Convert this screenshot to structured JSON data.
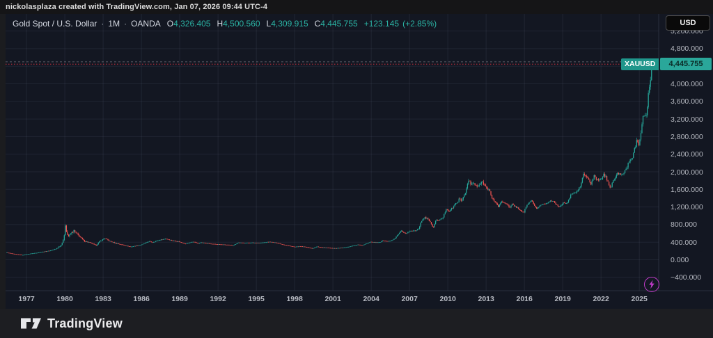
{
  "page": {
    "attribution": "nickolasplaza created with TradingView.com, Jan 07, 2026 09:44 UTC-4"
  },
  "header": {
    "symbol_title": "Gold Spot / U.S. Dollar",
    "separator": "·",
    "timeframe": "1M",
    "exchange": "OANDA",
    "ohlc": {
      "o_label": "O",
      "o": "4,326.405",
      "h_label": "H",
      "h": "4,500.560",
      "l_label": "L",
      "l": "4,309.915",
      "c_label": "C",
      "c": "4,445.755",
      "change": "+123.145",
      "change_pct": "(+2.85%)"
    },
    "currency_button": "USD"
  },
  "price_label": {
    "symbol": "XAUUSD",
    "price": "4,445.755",
    "value": 4445.755
  },
  "footer": {
    "brand": "TradingView"
  },
  "colors": {
    "up": "#26a69a",
    "down": "#ef5350",
    "price_line": "#f23645",
    "ath_line": "#9598a1",
    "badge": "#26a69a",
    "lightning": "#c13bc9",
    "chart_bg": "#131722"
  },
  "chart_data": {
    "type": "candlestick",
    "title": "Gold Spot / U.S. Dollar",
    "symbol": "XAUUSD",
    "timeframe": "1M",
    "exchange": "OANDA",
    "x_axis": {
      "start_year": 1975.4,
      "end_year": 2026.1,
      "tick_years": [
        1977,
        1980,
        1983,
        1986,
        1989,
        1992,
        1995,
        1998,
        2001,
        2004,
        2007,
        2010,
        2013,
        2016,
        2019,
        2022,
        2025
      ]
    },
    "y_axis": {
      "unit": "USD",
      "grid_step": 400,
      "grid_values": [
        -400,
        0,
        400,
        800,
        1200,
        1600,
        2000,
        2400,
        2800,
        3200,
        3600,
        4000,
        4400,
        4800,
        5200
      ],
      "labels": [
        {
          "value": 5200,
          "text": "5,200.000"
        },
        {
          "value": 4800,
          "text": "4,800.000"
        },
        {
          "value": 4000,
          "text": "4,000.000"
        },
        {
          "value": 3600,
          "text": "3,600.000"
        },
        {
          "value": 3200,
          "text": "3,200.000"
        },
        {
          "value": 2800,
          "text": "2,800.000"
        },
        {
          "value": 2400,
          "text": "2,400.000"
        },
        {
          "value": 2000,
          "text": "2,000.000"
        },
        {
          "value": 1600,
          "text": "1,600.000"
        },
        {
          "value": 1200,
          "text": "1,200.000"
        },
        {
          "value": 800,
          "text": "800.000"
        },
        {
          "value": 400,
          "text": "400.000"
        },
        {
          "value": 0,
          "text": "0.000"
        },
        {
          "value": -400,
          "text": "−400.000"
        }
      ]
    },
    "keypoints_year_close": [
      [
        1975.45,
        166
      ],
      [
        1976.0,
        131
      ],
      [
        1976.7,
        108
      ],
      [
        1977.2,
        135
      ],
      [
        1978.0,
        168
      ],
      [
        1978.8,
        205
      ],
      [
        1979.3,
        245
      ],
      [
        1979.7,
        330
      ],
      [
        1979.95,
        512
      ],
      [
        1980.04,
        800
      ],
      [
        1980.13,
        653
      ],
      [
        1980.25,
        520
      ],
      [
        1980.5,
        600
      ],
      [
        1980.7,
        660
      ],
      [
        1981.0,
        570
      ],
      [
        1981.5,
        430
      ],
      [
        1982.0,
        385
      ],
      [
        1982.45,
        325
      ],
      [
        1982.7,
        410
      ],
      [
        1982.9,
        445
      ],
      [
        1983.1,
        490
      ],
      [
        1983.5,
        425
      ],
      [
        1984.0,
        375
      ],
      [
        1984.6,
        335
      ],
      [
        1985.15,
        295
      ],
      [
        1985.7,
        325
      ],
      [
        1986.0,
        340
      ],
      [
        1986.6,
        420
      ],
      [
        1986.85,
        395
      ],
      [
        1987.3,
        440
      ],
      [
        1987.9,
        480
      ],
      [
        1988.3,
        445
      ],
      [
        1988.9,
        415
      ],
      [
        1989.45,
        362
      ],
      [
        1989.9,
        400
      ],
      [
        1990.1,
        412
      ],
      [
        1990.45,
        365
      ],
      [
        1990.6,
        395
      ],
      [
        1991.0,
        380
      ],
      [
        1991.5,
        360
      ],
      [
        1992.0,
        352
      ],
      [
        1992.7,
        340
      ],
      [
        1993.2,
        330
      ],
      [
        1993.6,
        390
      ],
      [
        1994.0,
        382
      ],
      [
        1994.7,
        388
      ],
      [
        1995.3,
        383
      ],
      [
        1996.05,
        408
      ],
      [
        1996.6,
        385
      ],
      [
        1997.0,
        352
      ],
      [
        1997.5,
        322
      ],
      [
        1998.0,
        292
      ],
      [
        1998.4,
        305
      ],
      [
        1998.9,
        292
      ],
      [
        1999.4,
        256
      ],
      [
        1999.75,
        300
      ],
      [
        2000.1,
        283
      ],
      [
        2000.5,
        276
      ],
      [
        2001.15,
        262
      ],
      [
        2001.7,
        272
      ],
      [
        2002.0,
        282
      ],
      [
        2002.45,
        312
      ],
      [
        2002.95,
        342
      ],
      [
        2003.3,
        330
      ],
      [
        2003.6,
        362
      ],
      [
        2003.95,
        412
      ],
      [
        2004.3,
        392
      ],
      [
        2004.7,
        402
      ],
      [
        2004.9,
        438
      ],
      [
        2005.1,
        425
      ],
      [
        2005.45,
        422
      ],
      [
        2005.85,
        476
      ],
      [
        2006.0,
        540
      ],
      [
        2006.35,
        660
      ],
      [
        2006.5,
        613
      ],
      [
        2006.75,
        600
      ],
      [
        2007.0,
        650
      ],
      [
        2007.4,
        662
      ],
      [
        2007.7,
        700
      ],
      [
        2008.0,
        920
      ],
      [
        2008.2,
        968
      ],
      [
        2008.55,
        890
      ],
      [
        2008.85,
        725
      ],
      [
        2009.1,
        920
      ],
      [
        2009.3,
        890
      ],
      [
        2009.6,
        950
      ],
      [
        2009.9,
        1170
      ],
      [
        2010.1,
        1100
      ],
      [
        2010.45,
        1210
      ],
      [
        2010.9,
        1380
      ],
      [
        2011.05,
        1330
      ],
      [
        2011.35,
        1510
      ],
      [
        2011.65,
        1825
      ],
      [
        2011.8,
        1700
      ],
      [
        2011.95,
        1745
      ],
      [
        2012.3,
        1655
      ],
      [
        2012.7,
        1770
      ],
      [
        2012.95,
        1670
      ],
      [
        2013.25,
        1590
      ],
      [
        2013.45,
        1390
      ],
      [
        2013.7,
        1325
      ],
      [
        2013.95,
        1200
      ],
      [
        2014.2,
        1325
      ],
      [
        2014.55,
        1290
      ],
      [
        2014.85,
        1175
      ],
      [
        2015.05,
        1260
      ],
      [
        2015.5,
        1170
      ],
      [
        2015.95,
        1062
      ],
      [
        2016.15,
        1230
      ],
      [
        2016.55,
        1355
      ],
      [
        2016.95,
        1150
      ],
      [
        2017.3,
        1255
      ],
      [
        2017.65,
        1275
      ],
      [
        2018.0,
        1340
      ],
      [
        2018.3,
        1320
      ],
      [
        2018.75,
        1190
      ],
      [
        2019.0,
        1290
      ],
      [
        2019.35,
        1290
      ],
      [
        2019.7,
        1500
      ],
      [
        2019.95,
        1515
      ],
      [
        2020.2,
        1585
      ],
      [
        2020.45,
        1720
      ],
      [
        2020.6,
        1960
      ],
      [
        2020.85,
        1880
      ],
      [
        2021.0,
        1845
      ],
      [
        2021.2,
        1710
      ],
      [
        2021.45,
        1900
      ],
      [
        2021.7,
        1815
      ],
      [
        2021.95,
        1805
      ],
      [
        2022.2,
        1935
      ],
      [
        2022.35,
        1895
      ],
      [
        2022.75,
        1635
      ],
      [
        2022.95,
        1815
      ],
      [
        2023.1,
        1825
      ],
      [
        2023.3,
        1985
      ],
      [
        2023.6,
        1920
      ],
      [
        2023.8,
        1985
      ],
      [
        2023.95,
        2060
      ],
      [
        2024.2,
        2230
      ],
      [
        2024.45,
        2330
      ],
      [
        2024.6,
        2500
      ],
      [
        2024.85,
        2745
      ],
      [
        2024.95,
        2625
      ],
      [
        2025.1,
        2855
      ],
      [
        2025.3,
        3300
      ],
      [
        2025.45,
        3290
      ],
      [
        2025.6,
        3350
      ],
      [
        2025.72,
        3860
      ],
      [
        2025.87,
        4040
      ],
      [
        2025.92,
        4322
      ],
      [
        2025.96,
        4322.6
      ]
    ],
    "volatility_profile": [
      [
        1975.4,
        0.05
      ],
      [
        1978.5,
        0.06
      ],
      [
        1979.6,
        0.1
      ],
      [
        1980.1,
        0.14
      ],
      [
        1980.8,
        0.11
      ],
      [
        1981.5,
        0.09
      ],
      [
        1983,
        0.08
      ],
      [
        1985,
        0.05
      ],
      [
        1988,
        0.045
      ],
      [
        1992,
        0.03
      ],
      [
        1997,
        0.03
      ],
      [
        2001,
        0.035
      ],
      [
        2005,
        0.04
      ],
      [
        2008,
        0.06
      ],
      [
        2009,
        0.05
      ],
      [
        2011,
        0.055
      ],
      [
        2013,
        0.055
      ],
      [
        2015,
        0.04
      ],
      [
        2018,
        0.03
      ],
      [
        2020,
        0.055
      ],
      [
        2021,
        0.04
      ],
      [
        2022,
        0.045
      ],
      [
        2024,
        0.04
      ],
      [
        2025,
        0.05
      ],
      [
        2026,
        0.04
      ]
    ],
    "last_candle": {
      "t": 2026.042,
      "open": 4326.405,
      "high": 4500.56,
      "low": 4309.915,
      "close": 4445.755
    },
    "current_price": 4445.755,
    "all_time_high": 4500.56,
    "legend_position": "top-left",
    "grid": true
  }
}
